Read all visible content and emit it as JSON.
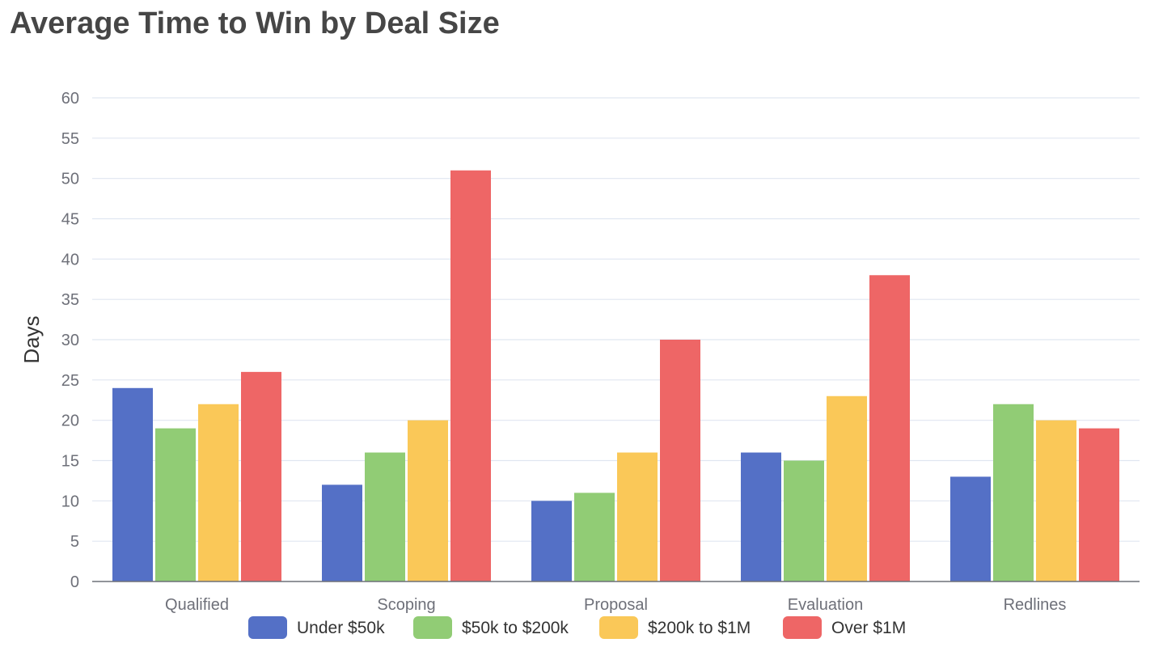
{
  "chart_data": {
    "type": "bar",
    "title": "Average Time to Win by Deal Size",
    "xlabel": "",
    "ylabel": "Days",
    "ylim": [
      0,
      60
    ],
    "yticks": [
      0,
      5,
      10,
      15,
      20,
      25,
      30,
      35,
      40,
      45,
      50,
      55,
      60
    ],
    "grid": true,
    "legend_position": "bottom",
    "categories": [
      "Qualified",
      "Scoping",
      "Proposal",
      "Evaluation",
      "Redlines"
    ],
    "series": [
      {
        "name": "Under $50k",
        "color": "#5470c6",
        "values": [
          24,
          12,
          10,
          16,
          13
        ]
      },
      {
        "name": "$50k to $200k",
        "color": "#91cc75",
        "values": [
          19,
          16,
          11,
          15,
          22
        ]
      },
      {
        "name": "$200k to $1M",
        "color": "#fac858",
        "values": [
          22,
          20,
          16,
          23,
          20
        ]
      },
      {
        "name": "Over $1M",
        "color": "#ee6666",
        "values": [
          26,
          51,
          30,
          38,
          19
        ]
      }
    ]
  }
}
